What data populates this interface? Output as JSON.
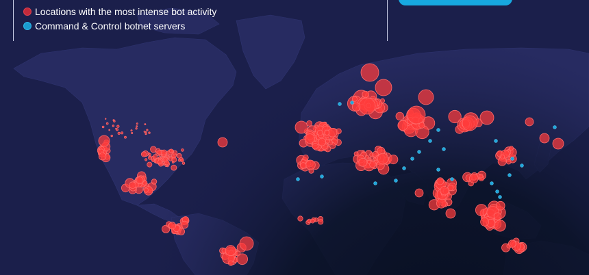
{
  "legend": {
    "items": [
      {
        "label": "Locations with the most intense bot activity",
        "color": "#c22a3b"
      },
      {
        "label": "Command & Control botnet servers",
        "color": "#1a9bd0"
      }
    ]
  },
  "colors": {
    "ocean": "#1b1f4b",
    "land": "#272b61",
    "night_shadow": "#0b1124",
    "bot_activity": "#ff3b3b",
    "cnc_server": "#1ea7dc",
    "accent_pill": "#17a8e0"
  }
}
